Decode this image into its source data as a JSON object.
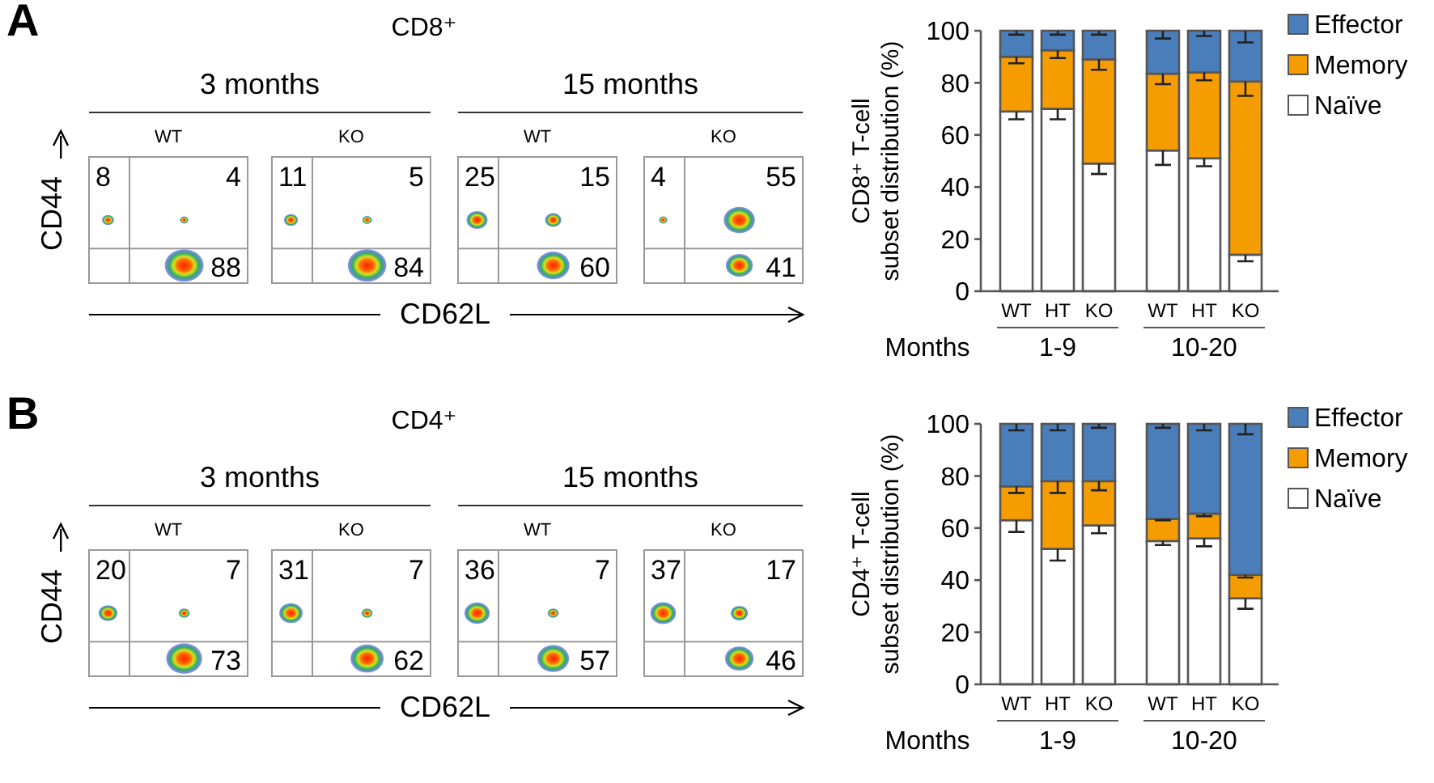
{
  "chart_data": [
    {
      "type": "other",
      "title": "CD8⁺",
      "xlabel": "CD62L",
      "ylabel": "CD44",
      "categories": [
        "WT",
        "KO",
        "WT",
        "KO"
      ],
      "series": [
        {
          "values": [
            8,
            11,
            25,
            4
          ]
        },
        {
          "values": [
            4,
            5,
            15,
            55
          ]
        },
        {
          "values": [
            88,
            84,
            60,
            41
          ]
        }
      ],
      "data_labels": true,
      "annotations": [
        "A",
        "3 months",
        "15 months"
      ]
    },
    {
      "type": "bar",
      "stacked": true,
      "ylabel": "CD8⁺ T-cell\nsubset distribution (%)",
      "categories": [
        "WT",
        "HT",
        "KO",
        "WT",
        "HT",
        "KO"
      ],
      "ylim": [
        0,
        100
      ],
      "yticks": [
        0,
        20,
        40,
        60,
        80,
        100
      ],
      "legend": "right",
      "series": [
        {
          "name": "Naïve",
          "color": "#ffffff",
          "values": [
            69,
            70,
            49,
            54,
            51,
            14
          ],
          "errors": [
            [
              66,
              69
            ],
            [
              66,
              70
            ],
            [
              45,
              49
            ],
            [
              48.5,
              54
            ],
            [
              48,
              51
            ],
            [
              11.5,
              14
            ]
          ]
        },
        {
          "name": "Memory",
          "color": "#f59c00",
          "values": [
            21,
            22.5,
            40,
            29.5,
            33,
            66.5
          ],
          "errors": [
            [
              87.5,
              90
            ],
            [
              89.5,
              92.5
            ],
            [
              85,
              89
            ],
            [
              79.5,
              83.5
            ],
            [
              81,
              84
            ],
            [
              75,
              80.5
            ]
          ]
        },
        {
          "name": "Effector",
          "color": "#4a7ebb",
          "values": [
            10,
            7.5,
            11,
            16.5,
            16,
            19.5
          ],
          "errors": [
            [
              98.5,
              100
            ],
            [
              98.5,
              100
            ],
            [
              98.5,
              100
            ],
            [
              97,
              100
            ],
            [
              98,
              100
            ],
            [
              95.5,
              100
            ]
          ]
        }
      ],
      "annotations": [
        "Months",
        "1-9",
        "10-20"
      ]
    },
    {
      "type": "other",
      "title": "CD4⁺",
      "xlabel": "CD62L",
      "ylabel": "CD44",
      "categories": [
        "WT",
        "KO",
        "WT",
        "KO"
      ],
      "series": [
        {
          "values": [
            20,
            31,
            36,
            37
          ]
        },
        {
          "values": [
            7,
            7,
            7,
            17
          ]
        },
        {
          "values": [
            73,
            62,
            57,
            46
          ]
        }
      ],
      "data_labels": true,
      "annotations": [
        "B",
        "3 months",
        "15 months"
      ]
    },
    {
      "type": "bar",
      "stacked": true,
      "ylabel": "CD4⁺ T-cell\nsubset distribution (%)",
      "categories": [
        "WT",
        "HT",
        "KO",
        "WT",
        "HT",
        "KO"
      ],
      "ylim": [
        0,
        100
      ],
      "yticks": [
        0,
        20,
        40,
        60,
        80,
        100
      ],
      "legend": "right",
      "series": [
        {
          "name": "Naïve",
          "color": "#ffffff",
          "values": [
            63,
            52,
            61,
            55,
            56,
            33
          ],
          "errors": [
            [
              58.5,
              63
            ],
            [
              47.5,
              52
            ],
            [
              58,
              61
            ],
            [
              53.5,
              55
            ],
            [
              53,
              56
            ],
            [
              29,
              33
            ]
          ]
        },
        {
          "name": "Memory",
          "color": "#f59c00",
          "values": [
            13,
            26,
            17,
            8.5,
            9.5,
            9
          ],
          "errors": [
            [
              73.5,
              76
            ],
            [
              73.5,
              78
            ],
            [
              74.5,
              78
            ],
            [
              63,
              63.5
            ],
            [
              64.5,
              65.5
            ],
            [
              41,
              42
            ]
          ]
        },
        {
          "name": "Effector",
          "color": "#4a7ebb",
          "values": [
            24,
            22,
            22,
            36.5,
            34.5,
            58
          ],
          "errors": [
            [
              97.5,
              100
            ],
            [
              97.5,
              100
            ],
            [
              98.5,
              100
            ],
            [
              98.5,
              100
            ],
            [
              97.5,
              100
            ],
            [
              96,
              100
            ]
          ]
        }
      ],
      "annotations": [
        "Months",
        "1-9",
        "10-20"
      ]
    }
  ]
}
